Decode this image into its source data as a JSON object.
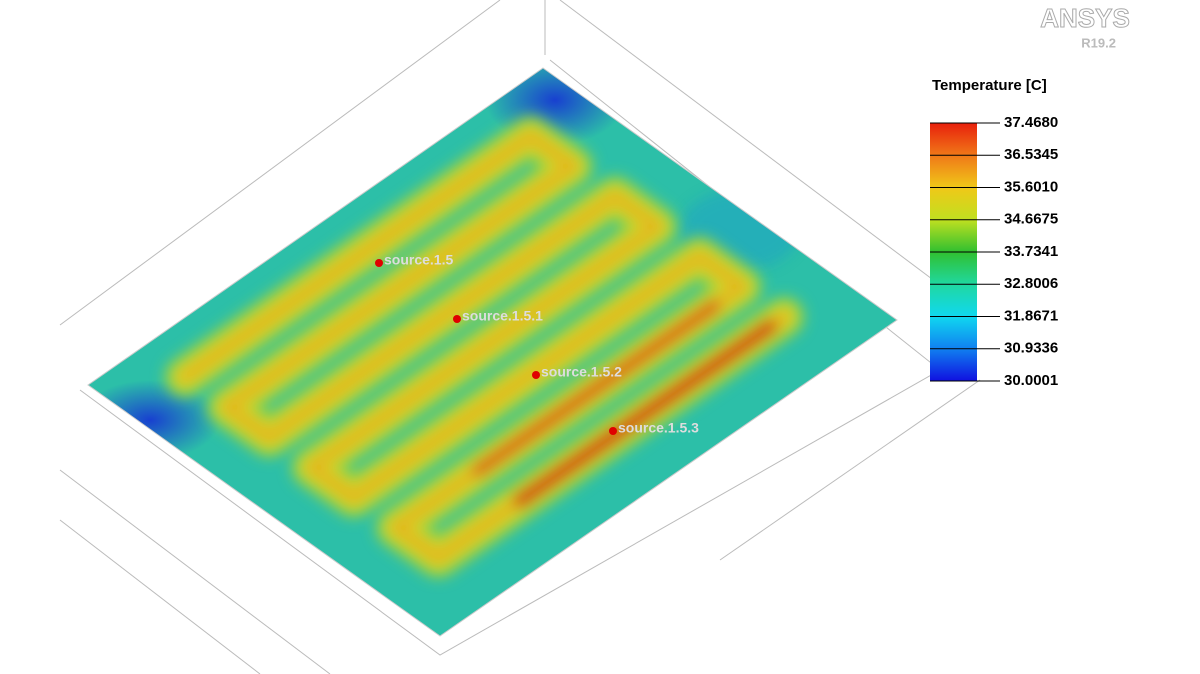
{
  "logo": {
    "brand": "ANSYS",
    "release": "R19.2"
  },
  "legend": {
    "title": "Temperature [C]",
    "labels": [
      "37.4680",
      "36.5345",
      "35.6010",
      "34.6675",
      "33.7341",
      "32.8006",
      "31.8671",
      "30.9336",
      "30.0001"
    ]
  },
  "sources": [
    "source.1.5",
    "source.1.5.1",
    "source.1.5.2",
    "source.1.5.3"
  ]
}
